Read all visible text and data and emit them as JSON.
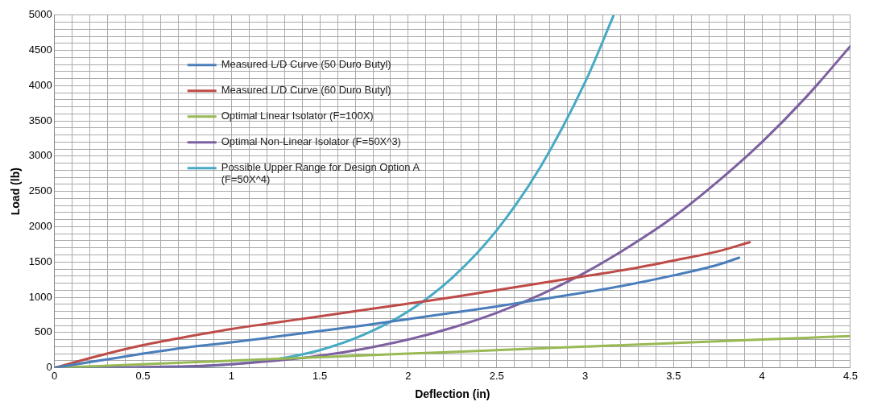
{
  "chart_data": {
    "type": "line",
    "xlabel": "Deflection (in)",
    "ylabel": "Load (lb)",
    "xlim": [
      0,
      4.5
    ],
    "ylim": [
      0,
      5000
    ],
    "xticks": [
      0,
      {
        "value": 0.1,
        "label": null
      },
      {
        "value": 0.2,
        "label": null
      },
      {
        "value": 0.3,
        "label": null
      },
      {
        "value": 0.4,
        "label": null
      },
      0.5,
      {
        "value": 0.6,
        "label": null
      },
      {
        "value": 0.7,
        "label": null
      },
      {
        "value": 0.8,
        "label": null
      },
      {
        "value": 0.9,
        "label": null
      },
      1,
      {
        "value": 1.1,
        "label": null
      },
      {
        "value": 1.2,
        "label": null
      },
      {
        "value": 1.3,
        "label": null
      },
      {
        "value": 1.4,
        "label": null
      },
      1.5,
      {
        "value": 1.6,
        "label": null
      },
      {
        "value": 1.7,
        "label": null
      },
      {
        "value": 1.8,
        "label": null
      },
      {
        "value": 1.9,
        "label": null
      },
      2,
      {
        "value": 2.1,
        "label": null
      },
      {
        "value": 2.2,
        "label": null
      },
      {
        "value": 2.3,
        "label": null
      },
      {
        "value": 2.4,
        "label": null
      },
      2.5,
      {
        "value": 2.6,
        "label": null
      },
      {
        "value": 2.7,
        "label": null
      },
      {
        "value": 2.8,
        "label": null
      },
      {
        "value": 2.9,
        "label": null
      },
      3,
      {
        "value": 3.1,
        "label": null
      },
      {
        "value": 3.2,
        "label": null
      },
      {
        "value": 3.3,
        "label": null
      },
      {
        "value": 3.4,
        "label": null
      },
      3.5,
      {
        "value": 3.6,
        "label": null
      },
      {
        "value": 3.7,
        "label": null
      },
      {
        "value": 3.8,
        "label": null
      },
      {
        "value": 3.9,
        "label": null
      },
      4,
      {
        "value": 4.1,
        "label": null
      },
      {
        "value": 4.2,
        "label": null
      },
      {
        "value": 4.3,
        "label": null
      },
      {
        "value": 4.4,
        "label": null
      },
      4.5
    ],
    "yticks": [
      0,
      {
        "value": 100,
        "label": null
      },
      {
        "value": 200,
        "label": null
      },
      {
        "value": 300,
        "label": null
      },
      {
        "value": 400,
        "label": null
      },
      500,
      {
        "value": 600,
        "label": null
      },
      {
        "value": 700,
        "label": null
      },
      {
        "value": 800,
        "label": null
      },
      {
        "value": 900,
        "label": null
      },
      1000,
      {
        "value": 1100,
        "label": null
      },
      {
        "value": 1200,
        "label": null
      },
      {
        "value": 1300,
        "label": null
      },
      {
        "value": 1400,
        "label": null
      },
      1500,
      {
        "value": 1600,
        "label": null
      },
      {
        "value": 1700,
        "label": null
      },
      {
        "value": 1800,
        "label": null
      },
      {
        "value": 1900,
        "label": null
      },
      2000,
      {
        "value": 2100,
        "label": null
      },
      {
        "value": 2200,
        "label": null
      },
      {
        "value": 2300,
        "label": null
      },
      {
        "value": 2400,
        "label": null
      },
      2500,
      {
        "value": 2600,
        "label": null
      },
      {
        "value": 2700,
        "label": null
      },
      {
        "value": 2800,
        "label": null
      },
      {
        "value": 2900,
        "label": null
      },
      3000,
      {
        "value": 3100,
        "label": null
      },
      {
        "value": 3200,
        "label": null
      },
      {
        "value": 3300,
        "label": null
      },
      {
        "value": 3400,
        "label": null
      },
      3500,
      {
        "value": 3600,
        "label": null
      },
      {
        "value": 3700,
        "label": null
      },
      {
        "value": 3800,
        "label": null
      },
      {
        "value": 3900,
        "label": null
      },
      4000,
      {
        "value": 4100,
        "label": null
      },
      {
        "value": 4200,
        "label": null
      },
      {
        "value": 4300,
        "label": null
      },
      {
        "value": 4400,
        "label": null
      },
      4500,
      {
        "value": 4600,
        "label": null
      },
      {
        "value": 4700,
        "label": null
      },
      {
        "value": 4800,
        "label": null
      },
      {
        "value": 4900,
        "label": null
      },
      5000
    ],
    "grid": true,
    "legend": "top left",
    "marker": "none",
    "series": [
      {
        "name": "Measured L/D Curve (50 Duro Butyl)",
        "color": "#4a7ebb",
        "x": [
          0,
          0.25,
          0.5,
          0.75,
          1,
          1.25,
          1.5,
          1.75,
          2,
          2.25,
          2.5,
          2.75,
          3,
          3.25,
          3.5,
          3.75,
          3.87
        ],
        "values": [
          0,
          100,
          200,
          290,
          360,
          440,
          520,
          600,
          690,
          780,
          870,
          970,
          1070,
          1180,
          1310,
          1460,
          1560
        ]
      },
      {
        "name": "Measured L/D Curve (60 Duro Butyl)",
        "color": "#be4b48",
        "x": [
          0,
          0.25,
          0.5,
          0.75,
          1,
          1.25,
          1.5,
          1.75,
          2,
          2.25,
          2.5,
          2.75,
          3,
          3.25,
          3.5,
          3.75,
          3.93
        ],
        "values": [
          0,
          170,
          320,
          440,
          550,
          640,
          730,
          820,
          910,
          1000,
          1100,
          1200,
          1300,
          1400,
          1520,
          1650,
          1780
        ]
      },
      {
        "name": "Optimal Linear Isolator (F=100X)",
        "color": "#98b954",
        "x": [
          0,
          0.5,
          1,
          1.5,
          2,
          2.5,
          3,
          3.5,
          4,
          4.5
        ],
        "values": [
          0,
          50,
          100,
          150,
          200,
          250,
          300,
          350,
          400,
          450
        ]
      },
      {
        "name": "Optimal Non-Linear Isolator (F=50X^3)",
        "color": "#7d60a0",
        "x": [
          0,
          0.25,
          0.5,
          0.75,
          1,
          1.25,
          1.5,
          1.75,
          2,
          2.25,
          2.5,
          2.75,
          3,
          3.25,
          3.5,
          3.75,
          4,
          4.25,
          4.5
        ],
        "values": [
          0,
          0,
          10,
          20,
          50,
          100,
          170,
          270,
          400,
          570,
          780,
          1040,
          1350,
          1720,
          2140,
          2640,
          3200,
          3840,
          4560
        ]
      },
      {
        "name": "Possible Upper Range for Design Option A (F=50X^4)",
        "color": "#46aac5",
        "x": [
          0,
          0.5,
          1,
          1.25,
          1.5,
          1.75,
          2,
          2.25,
          2.5,
          2.75,
          3,
          3.16
        ],
        "values": [
          0,
          0,
          50,
          120,
          250,
          470,
          800,
          1280,
          1950,
          2860,
          4050,
          4990
        ]
      }
    ]
  }
}
